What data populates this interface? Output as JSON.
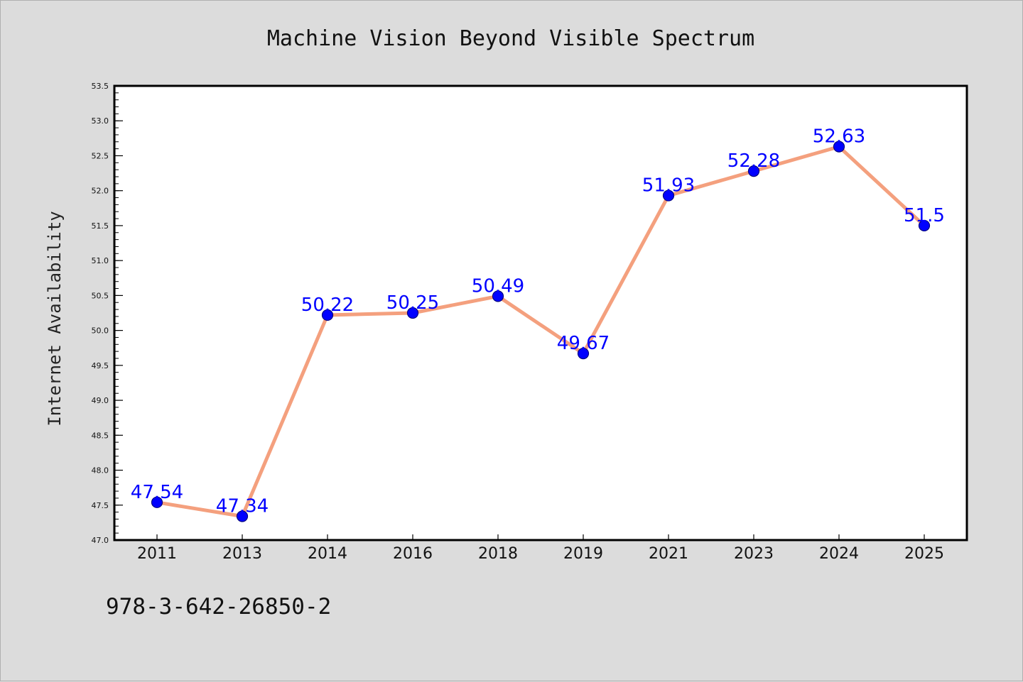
{
  "chart_data": {
    "type": "line",
    "title": "Machine Vision Beyond Visible Spectrum",
    "xlabel": "",
    "ylabel": "Internet Availability",
    "categories": [
      "2011",
      "2013",
      "2014",
      "2016",
      "2018",
      "2019",
      "2021",
      "2023",
      "2024",
      "2025"
    ],
    "values": [
      47.54,
      47.34,
      50.22,
      50.25,
      50.49,
      49.67,
      51.93,
      52.28,
      52.63,
      51.5
    ],
    "data_labels": [
      "47.54",
      "47.34",
      "50.22",
      "50.25",
      "50.49",
      "49.67",
      "51.93",
      "52.28",
      "52.63",
      "51.5"
    ],
    "ylim": [
      47.0,
      53.5
    ],
    "yticks": [
      "47.0",
      "47.5",
      "48.0",
      "48.5",
      "49.0",
      "49.5",
      "50.0",
      "50.5",
      "51.0",
      "51.5",
      "52.0",
      "52.5",
      "53.0",
      "53.5"
    ],
    "grid": false,
    "legend": "none",
    "colors": {
      "line": "#f4a07e",
      "marker": "#0000ff",
      "marker_edge": "#000080",
      "label": "#0000ff",
      "plot_bg": "#ffffff",
      "page_bg": "#dcdcdc"
    }
  },
  "footer": {
    "isbn": "978-3-642-26850-2"
  }
}
